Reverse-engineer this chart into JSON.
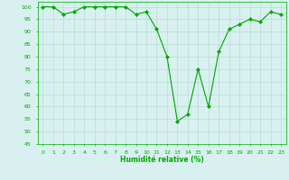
{
  "x": [
    0,
    1,
    2,
    3,
    4,
    5,
    6,
    7,
    8,
    9,
    10,
    11,
    12,
    13,
    14,
    15,
    16,
    17,
    18,
    19,
    20,
    21,
    22,
    23
  ],
  "y": [
    100,
    100,
    97,
    98,
    100,
    100,
    100,
    100,
    100,
    97,
    98,
    91,
    80,
    54,
    57,
    75,
    60,
    82,
    91,
    93,
    95,
    94,
    98,
    97
  ],
  "xlabel": "Humidité relative (%)",
  "ylim": [
    45,
    102
  ],
  "xlim": [
    -0.5,
    23.5
  ],
  "yticks": [
    45,
    50,
    55,
    60,
    65,
    70,
    75,
    80,
    85,
    90,
    95,
    100
  ],
  "xticks": [
    0,
    1,
    2,
    3,
    4,
    5,
    6,
    7,
    8,
    9,
    10,
    11,
    12,
    13,
    14,
    15,
    16,
    17,
    18,
    19,
    20,
    21,
    22,
    23
  ],
  "line_color": "#00aa00",
  "marker_color": "#00aa00",
  "bg_color": "#d8f0f0",
  "grid_color": "#b0d8cc",
  "axes_color": "#00aa00",
  "label_color": "#00aa00",
  "tick_color": "#00aa00"
}
